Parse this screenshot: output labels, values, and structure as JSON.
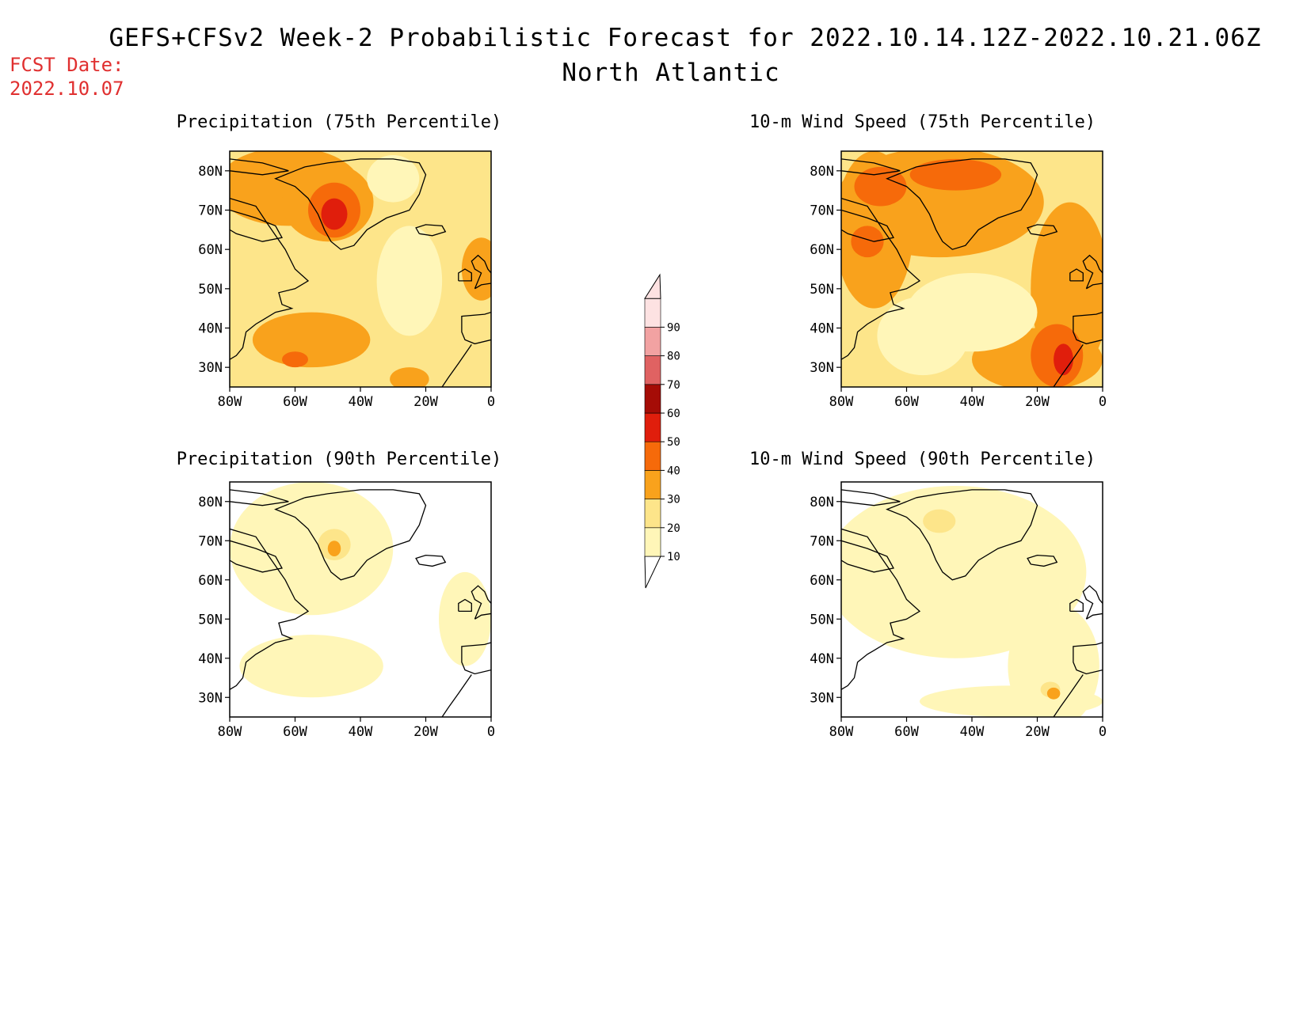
{
  "header": {
    "title": "GEFS+CFSv2 Week-2 Probabilistic Forecast for 2022.10.14.12Z-2022.10.21.06Z",
    "subtitle": "North Atlantic",
    "fcst_label": "FCST Date:",
    "fcst_date": "2022.10.07",
    "fcst_color": "#e03030"
  },
  "panels": [
    {
      "title": "Precipitation (75th Percentile)",
      "field": "precip-75"
    },
    {
      "title": "10-m Wind Speed (75th Percentile)",
      "field": "wind-75"
    },
    {
      "title": "Precipitation (90th Percentile)",
      "field": "precip-90"
    },
    {
      "title": "10-m Wind Speed (90th Percentile)",
      "field": "wind-90"
    }
  ],
  "axes": {
    "lat_labels": [
      "80N",
      "70N",
      "60N",
      "50N",
      "40N",
      "30N"
    ],
    "lon_labels": [
      "80W",
      "60W",
      "40W",
      "20W",
      "0"
    ]
  },
  "colorbar": {
    "levels": [
      "10",
      "20",
      "30",
      "40",
      "50",
      "60",
      "70",
      "80",
      "90"
    ],
    "colors": [
      "#fff6b8",
      "#fde58a",
      "#f9a21c",
      "#f66a0a",
      "#e01e0c",
      "#a50c06",
      "#e06262",
      "#f2a2a2",
      "#fde2e2"
    ]
  }
}
